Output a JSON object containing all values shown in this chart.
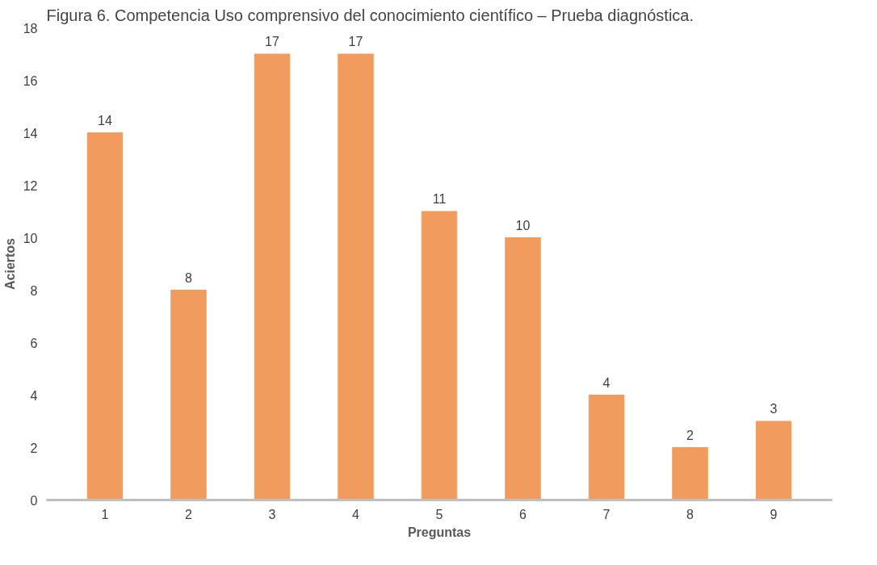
{
  "chart_data": {
    "type": "bar",
    "title": "Figura 6. Competencia Uso comprensivo del conocimiento científico – Prueba diagnóstica.",
    "xlabel": "Preguntas",
    "ylabel": "Aciertos",
    "categories": [
      "1",
      "2",
      "3",
      "4",
      "5",
      "6",
      "7",
      "8",
      "9"
    ],
    "values": [
      14,
      8,
      17,
      17,
      11,
      10,
      4,
      2,
      3
    ],
    "color": "#f29b5e",
    "ylim": [
      0,
      18
    ],
    "yticks": [
      0,
      2,
      4,
      6,
      8,
      10,
      12,
      14,
      16,
      18
    ],
    "grid": false,
    "data_labels": true
  }
}
